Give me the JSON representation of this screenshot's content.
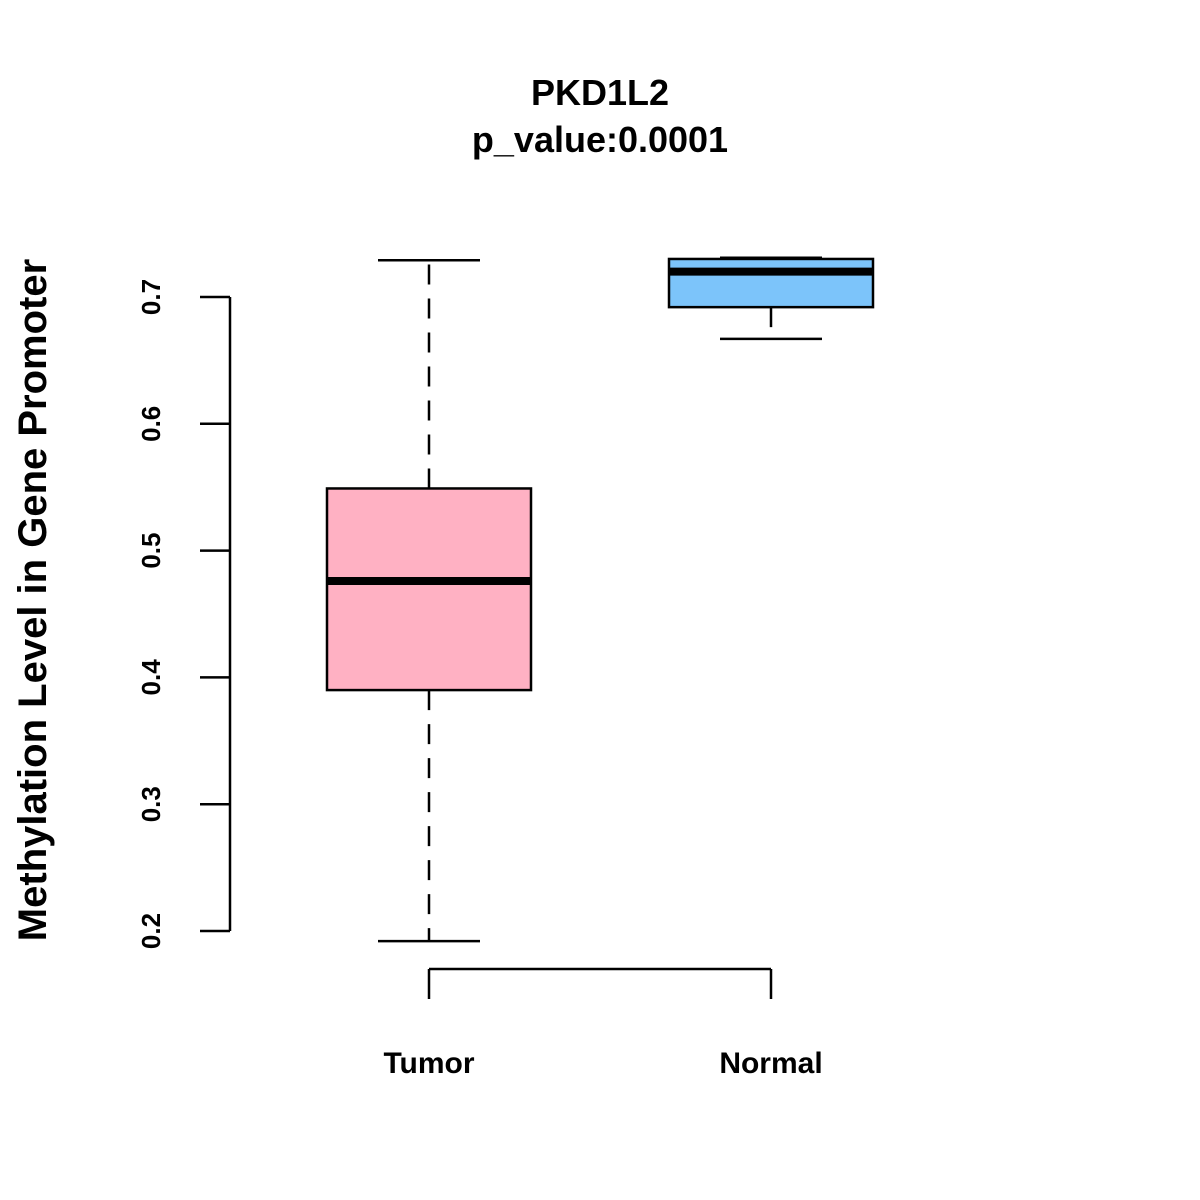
{
  "chart_data": {
    "type": "box",
    "title": "PKD1L2",
    "subtitle": "p_value:0.0001",
    "xlabel": "",
    "ylabel": "Methylation Level in Gene Promoter",
    "categories": [
      "Tumor",
      "Normal"
    ],
    "yticks": [
      0.2,
      0.3,
      0.4,
      0.5,
      0.6,
      0.7
    ],
    "ytick_labels": [
      "0.2",
      "0.3",
      "0.4",
      "0.5",
      "0.6",
      "0.7"
    ],
    "ylim": [
      0.2,
      0.7
    ],
    "series": [
      {
        "name": "Tumor",
        "min": 0.192,
        "q1": 0.39,
        "median": 0.476,
        "q3": 0.549,
        "max": 0.729,
        "color": "#FFB1C3"
      },
      {
        "name": "Normal",
        "min": 0.667,
        "q1": 0.692,
        "median": 0.72,
        "q3": 0.73,
        "max": 0.731,
        "color": "#7CC4FA"
      }
    ]
  }
}
